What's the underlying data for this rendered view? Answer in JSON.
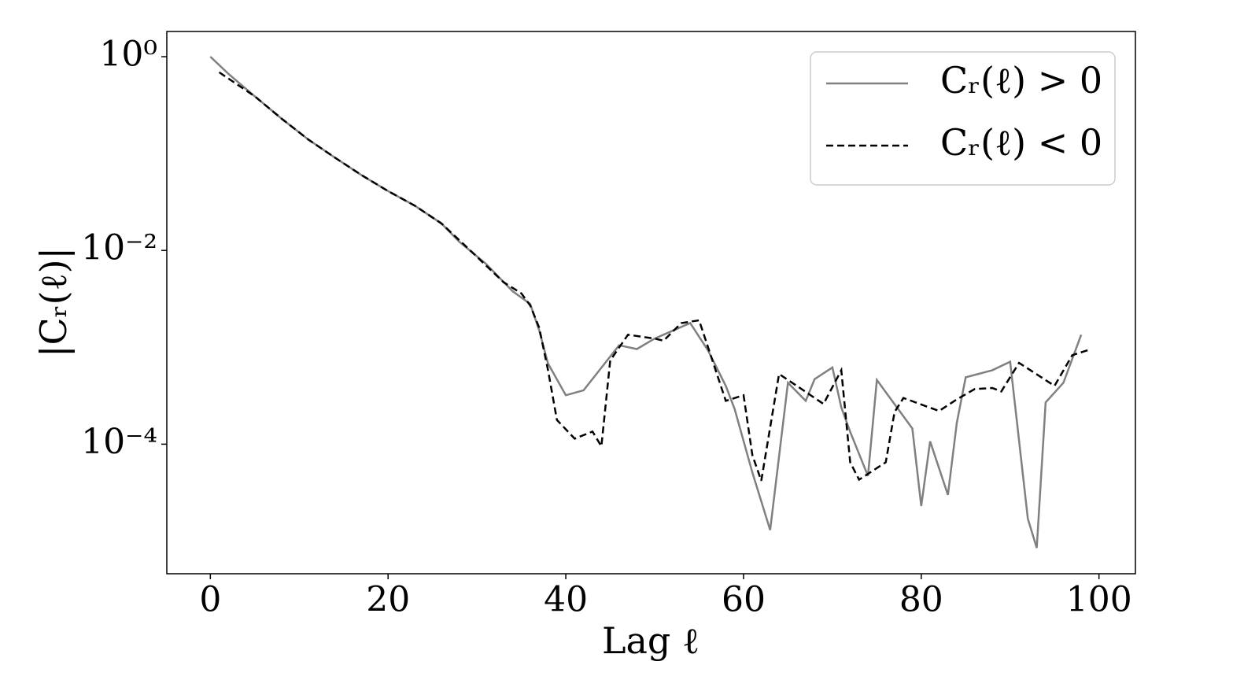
{
  "chart_data": {
    "type": "line",
    "log_y": true,
    "legend": "upper right",
    "xlabel": "Lag ℓ",
    "ylabel": "|Cᵣ(ℓ)|",
    "xlim": [
      -4.9,
      104.1
    ],
    "ylim": [
      4.6e-06,
      1.82
    ],
    "xticks": [
      0,
      20,
      40,
      60,
      80,
      100
    ],
    "yticks": [
      {
        "value": 1,
        "label": "10⁰"
      },
      {
        "value": 0.01,
        "label": "10⁻²"
      },
      {
        "value": 0.0001,
        "label": "10⁻⁴"
      }
    ],
    "series": [
      {
        "name": "Cᵣ(ℓ) > 0",
        "color": "#808080",
        "linestyle": "solid",
        "x": [
          0,
          2,
          5,
          8,
          11,
          14,
          17,
          20,
          23,
          26,
          28,
          31,
          34,
          36,
          37,
          38,
          40,
          42,
          46,
          48,
          50,
          52,
          54,
          56,
          58,
          59,
          61,
          63,
          65,
          67,
          68,
          70,
          71,
          72,
          74,
          75,
          79,
          80,
          81,
          83,
          84,
          85,
          88,
          90,
          92,
          93,
          94,
          96,
          98
        ],
        "values": [
          1.0,
          0.67,
          0.39,
          0.23,
          0.14,
          0.091,
          0.06,
          0.041,
          0.029,
          0.019,
          0.0123,
          0.0073,
          0.0038,
          0.0028,
          0.0015,
          0.00068,
          0.00032,
          0.00036,
          0.00105,
          0.00096,
          0.00123,
          0.00148,
          0.00178,
          0.00093,
          0.0004,
          0.00023,
          5.1e-05,
          1.3e-05,
          0.00043,
          0.00028,
          0.00047,
          0.00062,
          0.00024,
          0.000134,
          4.7e-05,
          0.00046,
          0.000145,
          2.3e-05,
          0.000107,
          3e-05,
          0.000166,
          0.00049,
          0.00058,
          0.00071,
          1.7e-05,
          8.5e-06,
          0.00027,
          0.00043,
          0.00135
        ]
      },
      {
        "name": "Cᵣ(ℓ) < 0",
        "color": "#000000",
        "linestyle": "dashed",
        "x": [
          1,
          5,
          8,
          11,
          14,
          17,
          20,
          23,
          26,
          29,
          33,
          35,
          36,
          37,
          38,
          39,
          41,
          43,
          44,
          45,
          47,
          50,
          51,
          53,
          55,
          58,
          60,
          61,
          62,
          64,
          66,
          69,
          71,
          72,
          73,
          76,
          77,
          78,
          82,
          84,
          86,
          88,
          89,
          91,
          95,
          97,
          99
        ],
        "values": [
          0.69,
          0.39,
          0.23,
          0.14,
          0.091,
          0.06,
          0.041,
          0.029,
          0.019,
          0.0105,
          0.0047,
          0.0036,
          0.0027,
          0.0016,
          0.00058,
          0.000178,
          0.000114,
          0.000135,
          9.5e-05,
          0.00073,
          0.00135,
          0.00123,
          0.00117,
          0.00178,
          0.0019,
          0.00028,
          0.00032,
          7.7e-05,
          4.2e-05,
          0.00053,
          0.0004,
          0.00026,
          0.00058,
          6.5e-05,
          4.3e-05,
          6.5e-05,
          0.000215,
          0.0003,
          0.00022,
          0.00029,
          0.00037,
          0.00038,
          0.00035,
          0.00069,
          0.0004,
          0.00083,
          0.00095
        ]
      }
    ]
  }
}
